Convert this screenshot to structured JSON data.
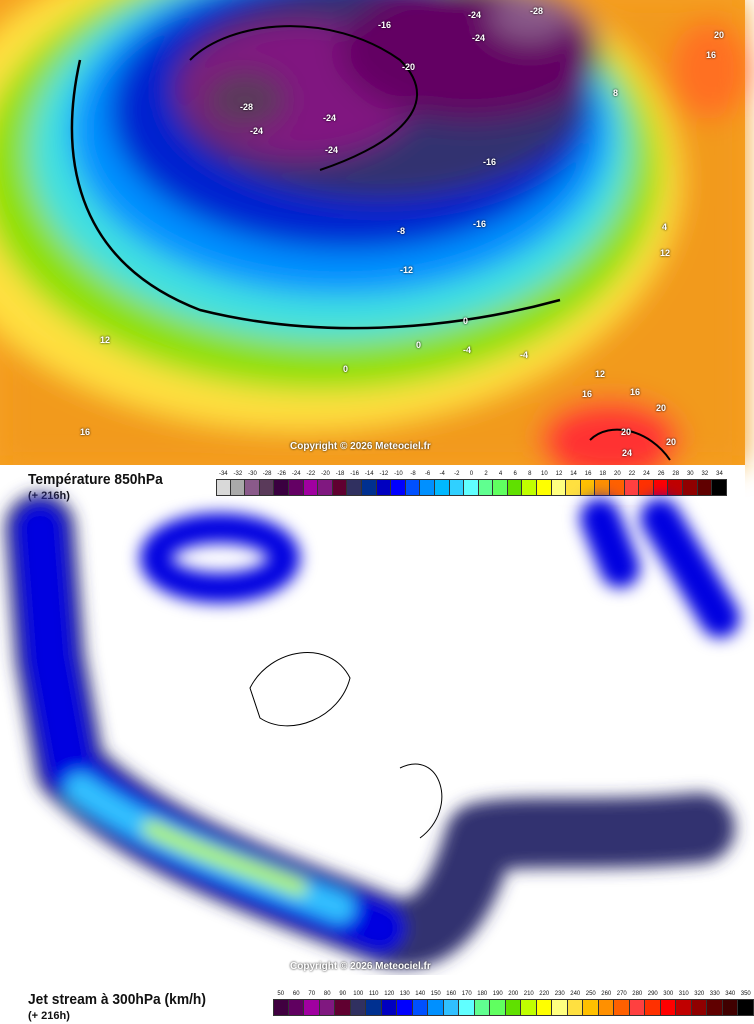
{
  "temperature_map": {
    "title": "Température 850hPa",
    "forecast": "(+ 216h)",
    "copyright": "Copyright © 2026 Meteociel.fr",
    "contour_labels": [
      "-28",
      "-24",
      "-24",
      "-24",
      "-20",
      "-16",
      "-24",
      "-24",
      "-28",
      "-16",
      "-16",
      "-8",
      "-12",
      "-4",
      "0",
      "0",
      "0",
      "-4",
      "12",
      "16",
      "12",
      "16",
      "16",
      "20",
      "20",
      "24",
      "20",
      "8",
      "16",
      "20",
      "4",
      "12"
    ],
    "legend": {
      "labels": [
        "-34",
        "-32",
        "-30",
        "-28",
        "-26",
        "-24",
        "-22",
        "-20",
        "-18",
        "-16",
        "-14",
        "-12",
        "-10",
        "-8",
        "-6",
        "-4",
        "-2",
        "0",
        "2",
        "4",
        "6",
        "8",
        "10",
        "12",
        "14",
        "16",
        "18",
        "20",
        "22",
        "24",
        "26",
        "28",
        "30",
        "32",
        "34"
      ],
      "colors": [
        "#d9d9d9",
        "#aaaaaa",
        "#8a5a8a",
        "#5a3a5a",
        "#3a0040",
        "#640064",
        "#a000a0",
        "#801880",
        "#600030",
        "#303060",
        "#003090",
        "#0000c0",
        "#0000ff",
        "#0050ff",
        "#0090ff",
        "#00b8ff",
        "#30d0ff",
        "#60ffff",
        "#60ff90",
        "#60ff60",
        "#60e000",
        "#c0ff00",
        "#ffff00",
        "#ffff80",
        "#ffe040",
        "#ffc000",
        "#ff9000",
        "#ff6000",
        "#ff4040",
        "#ff3000",
        "#ff0000",
        "#c00000",
        "#900000",
        "#600000",
        "#000000"
      ]
    }
  },
  "jet_map": {
    "title": "Jet stream à 300hPa (km/h)",
    "forecast": "(+ 216h)",
    "copyright": "Copyright © 2026 Meteociel.fr",
    "legend": {
      "labels": [
        "50",
        "60",
        "70",
        "80",
        "90",
        "100",
        "110",
        "120",
        "130",
        "140",
        "150",
        "160",
        "170",
        "180",
        "190",
        "200",
        "210",
        "220",
        "230",
        "240",
        "250",
        "260",
        "270",
        "280",
        "290",
        "300",
        "310",
        "320",
        "330",
        "340",
        "350"
      ],
      "colors": [
        "#400040",
        "#600060",
        "#a000a0",
        "#801880",
        "#600030",
        "#303060",
        "#003090",
        "#0000c0",
        "#0000ff",
        "#0050ff",
        "#0090ff",
        "#30c0ff",
        "#60ffff",
        "#60ff90",
        "#60ff60",
        "#60e000",
        "#c0ff00",
        "#ffff00",
        "#ffff80",
        "#ffe040",
        "#ffc000",
        "#ff9000",
        "#ff6000",
        "#ff4040",
        "#ff3000",
        "#ff0000",
        "#c00000",
        "#900000",
        "#600000",
        "#400000",
        "#000000"
      ]
    }
  }
}
